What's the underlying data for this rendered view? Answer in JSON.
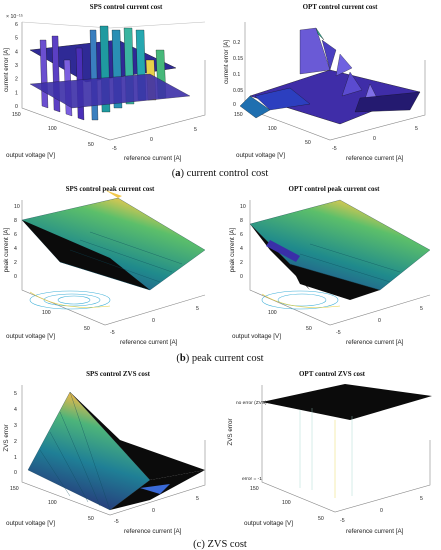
{
  "captions": [
    {
      "letter": "a",
      "text": "current control cost"
    },
    {
      "letter": "b",
      "text": "peak current cost"
    },
    {
      "letter": "c",
      "text": "ZVS cost"
    }
  ],
  "colors": {
    "surface_low": "#2b1a6e",
    "surface_mid": "#1f8a8c",
    "surface_high": "#f2c94c",
    "dark": "#0b0b0b"
  },
  "chart_data": [
    {
      "type": "surface",
      "title": "SPS control current cost",
      "xlabel": "output voltage [V]",
      "ylabel": "reference current [A]",
      "zlabel": "current error [A]",
      "z_exponent_label": "× 10⁻¹⁵",
      "x_ticks": [
        "150",
        "100",
        "50"
      ],
      "y_ticks": [
        "-5",
        "0",
        "5"
      ],
      "z_ticks": [
        "0",
        "1",
        "2",
        "3",
        "4",
        "5",
        "6"
      ],
      "zlim": [
        0,
        6
      ]
    },
    {
      "type": "surface",
      "title": "OPT control current cost",
      "xlabel": "output voltage [V]",
      "ylabel": "reference current [A]",
      "zlabel": "current error [A]",
      "x_ticks": [
        "150",
        "100",
        "50"
      ],
      "y_ticks": [
        "-5",
        "0",
        "5"
      ],
      "z_ticks": [
        "0",
        "0.05",
        "0.1",
        "0.15",
        "0.2"
      ],
      "zlim": [
        0,
        0.2
      ]
    },
    {
      "type": "surface",
      "title": "SPS control peak current cost",
      "xlabel": "output voltage [V]",
      "ylabel": "reference current [A]",
      "zlabel": "peak current [A]",
      "x_ticks": [
        "100",
        "50"
      ],
      "y_ticks": [
        "-5",
        "0",
        "5"
      ],
      "z_ticks": [
        "0",
        "2",
        "4",
        "6",
        "8",
        "10"
      ],
      "zlim": [
        0,
        10
      ]
    },
    {
      "type": "surface",
      "title": "OPT control peak current cost",
      "xlabel": "output voltage [V]",
      "ylabel": "reference current [A]",
      "zlabel": "peak current [A]",
      "x_ticks": [
        "100",
        "50"
      ],
      "y_ticks": [
        "-5",
        "0",
        "5"
      ],
      "z_ticks": [
        "0",
        "2",
        "4",
        "6",
        "8",
        "10"
      ],
      "zlim": [
        0,
        10
      ]
    },
    {
      "type": "surface",
      "title": "SPS control ZVS cost",
      "xlabel": "output voltage [V]",
      "ylabel": "reference current [A]",
      "zlabel": "ZVS error",
      "x_ticks": [
        "150",
        "100",
        "50"
      ],
      "y_ticks": [
        "-5",
        "0",
        "5"
      ],
      "z_ticks": [
        "0",
        "1",
        "2",
        "3",
        "4",
        "5"
      ],
      "zlim": [
        0,
        5
      ]
    },
    {
      "type": "surface",
      "title": "OPT control ZVS cost",
      "xlabel": "output voltage [V]",
      "ylabel": "reference current [A]",
      "zlabel": "ZVS error",
      "x_ticks": [
        "150",
        "100",
        "50"
      ],
      "y_ticks": [
        "-5",
        "0",
        "5"
      ],
      "annotations": [
        "no error (ZVS) = 0",
        "error = -1"
      ],
      "z_ticks": [],
      "zlim": [
        -1,
        0
      ]
    }
  ]
}
